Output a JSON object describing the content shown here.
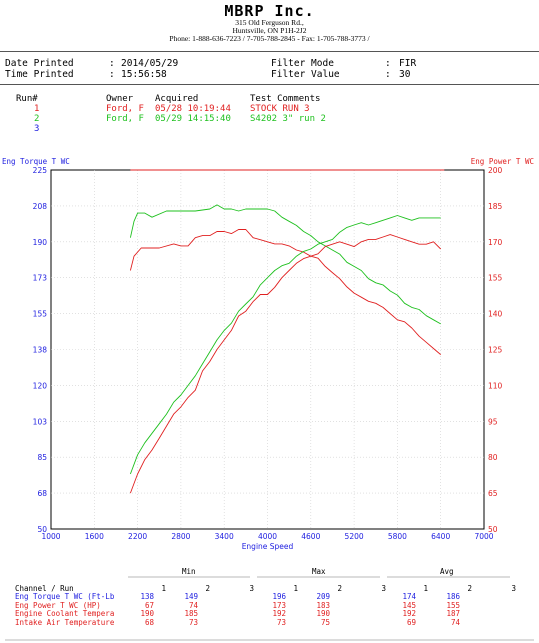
{
  "header": {
    "company": "MBRP Inc.",
    "address1": "315 Old Ferguson Rd.,",
    "address2": "Huntsville, ON  P1H-2J2",
    "phone": "Phone: 1-888-636-7223 / 7-705-788-2845 - Fax: 1-705-788-3773 /"
  },
  "info": {
    "date_label": "Date Printed",
    "date_value": "2014/05/29",
    "time_label": "Time Printed",
    "time_value": "15:56:58",
    "filter_mode_label": "Filter Mode",
    "filter_mode_value": "FIR",
    "filter_value_label": "Filter Value",
    "filter_value_value": "30"
  },
  "runs": {
    "headers": {
      "run": "Run#",
      "owner": "Owner",
      "acquired": "Acquired",
      "comments": "Test Comments"
    },
    "rows": [
      {
        "num": "1",
        "owner": "Ford, F",
        "acquired": "05/28 10:19:44",
        "comment": "STOCK RUN 3",
        "color": "#e02020"
      },
      {
        "num": "2",
        "owner": "Ford, F",
        "acquired": "05/29 14:15:40",
        "comment": "S4202 3\" run 2",
        "color": "#1ec01e"
      },
      {
        "num": "3",
        "owner": "",
        "acquired": "",
        "comment": "",
        "color": "#2020e0"
      }
    ]
  },
  "chart_data": {
    "type": "line",
    "xlabel": "Engine Speed",
    "ylabel_left": "Eng Torque T WC",
    "ylabel_right": "Eng Power T WC",
    "xlim": [
      1000,
      7000
    ],
    "ylim_left": [
      50,
      225
    ],
    "ylim_right": [
      50,
      200
    ],
    "x_ticks": [
      "1000",
      "1600",
      "2200",
      "2800",
      "3400",
      "4000",
      "4600",
      "5200",
      "5800",
      "6400",
      "7000"
    ],
    "y_left_ticks": [
      "50",
      "68",
      "85",
      "103",
      "120",
      "138",
      "155",
      "173",
      "190",
      "208",
      "225"
    ],
    "y_right_ticks": [
      "50",
      "65",
      "80",
      "95",
      "110",
      "125",
      "140",
      "155",
      "170",
      "185",
      "200"
    ],
    "colors": {
      "left_axis": "#2020e0",
      "right_axis": "#e02020",
      "run1": "#e02020",
      "run2": "#1ec01e"
    },
    "reference_line": {
      "axis": "left",
      "y": 225,
      "x_range": [
        2100,
        6450
      ]
    },
    "series": [
      {
        "name": "Eng Torque T WC",
        "run": "1",
        "axis": "left",
        "color": "#e02020",
        "x": [
          2100,
          2150,
          2250,
          2400,
          2500,
          2700,
          2800,
          2900,
          3000,
          3100,
          3200,
          3300,
          3400,
          3500,
          3600,
          3700,
          3800,
          3900,
          4000,
          4100,
          4200,
          4300,
          4400,
          4500,
          4600,
          4700,
          4800,
          4900,
          5000,
          5100,
          5200,
          5300,
          5400,
          5500,
          5600,
          5700,
          5800,
          5900,
          6000,
          6100,
          6200,
          6300,
          6400
        ],
        "y": [
          176,
          183,
          187,
          187,
          187,
          189,
          188,
          188,
          192,
          193,
          193,
          195,
          195,
          194,
          196,
          196,
          192,
          191,
          190,
          189,
          189,
          188,
          186,
          185,
          183,
          182,
          178,
          175,
          172,
          168,
          165,
          163,
          161,
          160,
          158,
          155,
          152,
          151,
          148,
          144,
          141,
          138,
          135
        ]
      },
      {
        "name": "Eng Torque T WC",
        "run": "2",
        "axis": "left",
        "color": "#1ec01e",
        "x": [
          2100,
          2150,
          2200,
          2300,
          2400,
          2600,
          2800,
          3000,
          3200,
          3300,
          3400,
          3500,
          3600,
          3700,
          3800,
          3900,
          4000,
          4100,
          4200,
          4300,
          4400,
          4500,
          4600,
          4700,
          4800,
          4900,
          5000,
          5100,
          5200,
          5300,
          5400,
          5500,
          5600,
          5700,
          5800,
          5900,
          6000,
          6100,
          6200,
          6300,
          6400
        ],
        "y": [
          192,
          200,
          204,
          204,
          202,
          205,
          205,
          205,
          206,
          208,
          206,
          206,
          205,
          206,
          206,
          206,
          206,
          205,
          202,
          200,
          198,
          195,
          193,
          190,
          188,
          186,
          184,
          180,
          178,
          176,
          172,
          170,
          169,
          166,
          164,
          160,
          158,
          157,
          154,
          152,
          150
        ]
      },
      {
        "name": "Eng Power T WC",
        "run": "1",
        "axis": "right",
        "color": "#e02020",
        "x": [
          2100,
          2200,
          2300,
          2400,
          2500,
          2600,
          2700,
          2800,
          2900,
          3000,
          3100,
          3200,
          3300,
          3400,
          3500,
          3600,
          3700,
          3800,
          3900,
          4000,
          4100,
          4200,
          4300,
          4400,
          4500,
          4600,
          4700,
          4800,
          4900,
          5000,
          5100,
          5200,
          5300,
          5400,
          5500,
          5600,
          5700,
          5800,
          5900,
          6000,
          6100,
          6200,
          6300,
          6400
        ],
        "y": [
          65,
          73,
          79,
          83,
          88,
          93,
          98,
          101,
          105,
          108,
          116,
          120,
          125,
          129,
          133,
          139,
          141,
          145,
          148,
          148,
          151,
          155,
          158,
          161,
          163,
          164,
          165,
          168,
          169,
          170,
          169,
          168,
          170,
          171,
          171,
          172,
          173,
          172,
          171,
          170,
          169,
          169,
          170,
          167
        ]
      },
      {
        "name": "Eng Power T WC",
        "run": "2",
        "axis": "right",
        "color": "#1ec01e",
        "x": [
          2100,
          2200,
          2300,
          2400,
          2500,
          2600,
          2700,
          2800,
          2900,
          3000,
          3100,
          3200,
          3300,
          3400,
          3500,
          3600,
          3700,
          3800,
          3900,
          4000,
          4100,
          4200,
          4300,
          4400,
          4500,
          4600,
          4700,
          4800,
          4900,
          5000,
          5100,
          5200,
          5300,
          5400,
          5500,
          5600,
          5700,
          5800,
          5900,
          6000,
          6100,
          6200,
          6300,
          6400
        ],
        "y": [
          73,
          81,
          86,
          90,
          94,
          98,
          103,
          106,
          110,
          114,
          119,
          124,
          129,
          133,
          136,
          141,
          144,
          147,
          152,
          155,
          158,
          160,
          161,
          164,
          166,
          167,
          169,
          170,
          171,
          174,
          176,
          177,
          178,
          177,
          178,
          179,
          180,
          181,
          180,
          179,
          180,
          180,
          180,
          180
        ]
      }
    ]
  },
  "stats": {
    "headers": {
      "min": "Min",
      "max": "Max",
      "avg": "Avg"
    },
    "channel_label": "Channel / Run",
    "run_numbers": [
      "1",
      "2",
      "3"
    ],
    "rows": [
      {
        "name": "Eng Torque T WC (Ft-Lb",
        "color": "#2020e0",
        "min": [
          "138",
          "149",
          ""
        ],
        "max": [
          "196",
          "209",
          ""
        ],
        "avg": [
          "174",
          "186",
          ""
        ]
      },
      {
        "name": "Eng Power T WC (HP)",
        "color": "#e02020",
        "min": [
          "67",
          "74",
          ""
        ],
        "max": [
          "173",
          "183",
          ""
        ],
        "avg": [
          "145",
          "155",
          ""
        ]
      },
      {
        "name": "Engine Coolant Tempera",
        "color": "#e02020",
        "min": [
          "190",
          "185",
          ""
        ],
        "max": [
          "192",
          "190",
          ""
        ],
        "avg": [
          "192",
          "187",
          ""
        ]
      },
      {
        "name": "Intake Air Temperature",
        "color": "#e02020",
        "min": [
          "68",
          "73",
          ""
        ],
        "max": [
          "73",
          "75",
          ""
        ],
        "avg": [
          "69",
          "74",
          ""
        ]
      }
    ]
  }
}
